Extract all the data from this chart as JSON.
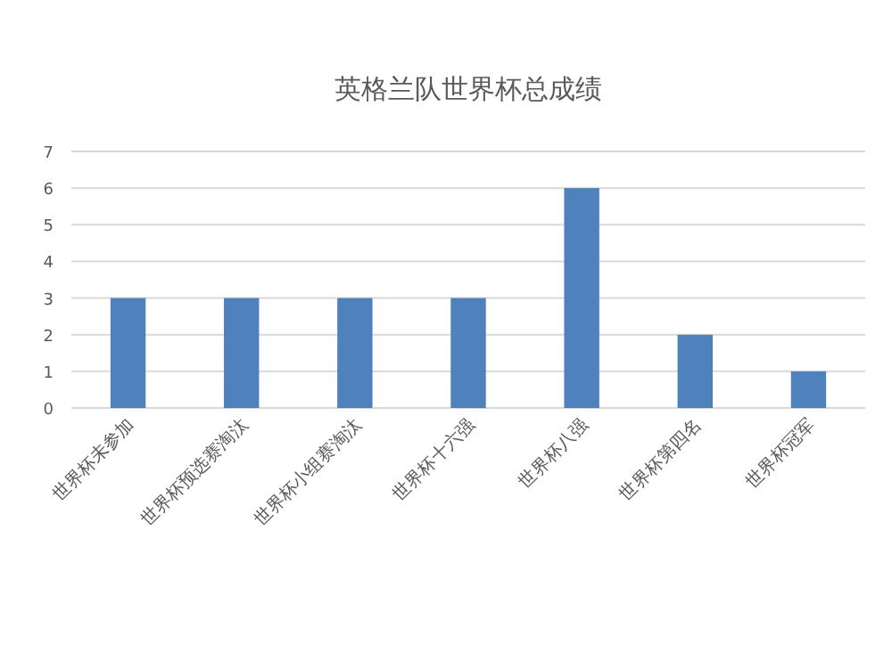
{
  "chart_data": {
    "type": "bar",
    "title": "英格兰队世界杯总成绩",
    "categories": [
      "世界杯未参加",
      "世界杯预选赛淘汰",
      "世界杯小组赛淘汰",
      "世界杯十六强",
      "世界杯八强",
      "世界杯第四名",
      "世界杯冠军"
    ],
    "values": [
      3,
      3,
      3,
      3,
      6,
      2,
      1
    ],
    "color": "#4f81bd",
    "ylim": [
      0,
      7
    ],
    "yticks": [
      0,
      1,
      2,
      3,
      4,
      5,
      6,
      7
    ],
    "grid": "y"
  }
}
